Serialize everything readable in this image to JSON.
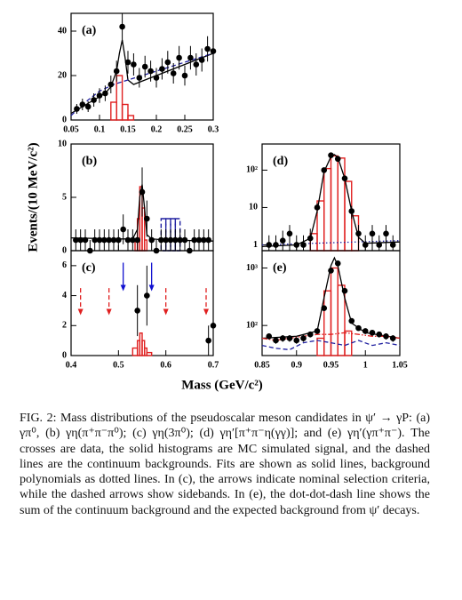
{
  "chart_data": [
    {
      "type": "scatter",
      "label": "(a)",
      "x": [
        0.06,
        0.07,
        0.08,
        0.09,
        0.1,
        0.11,
        0.12,
        0.13,
        0.14,
        0.15,
        0.16,
        0.17,
        0.18,
        0.19,
        0.2,
        0.21,
        0.22,
        0.23,
        0.24,
        0.25,
        0.26,
        0.27,
        0.28,
        0.29,
        0.3
      ],
      "values": [
        5,
        7,
        6,
        9,
        11,
        12,
        16,
        22,
        42,
        26,
        25,
        19,
        24,
        22,
        19,
        23,
        26,
        21,
        28,
        20,
        28,
        25,
        27,
        32,
        31
      ],
      "errors": [
        2.2,
        2.6,
        2.4,
        3,
        3.3,
        3.5,
        4,
        4.7,
        6.5,
        5.1,
        5,
        4.4,
        4.9,
        4.7,
        4.4,
        4.8,
        5.1,
        4.6,
        5.3,
        4.5,
        5.3,
        5,
        5.2,
        5.7,
        5.6
      ],
      "color": "#000000",
      "xlim": [
        0.05,
        0.3
      ],
      "ylim": [
        0,
        48
      ],
      "xticks": [
        0.05,
        0.1,
        0.15,
        0.2,
        0.25,
        0.3
      ],
      "yticks": [
        0,
        20,
        40
      ],
      "xtick_labels": true,
      "log": false,
      "histograms": [
        {
          "bins": [
            0.12,
            0.13,
            0.14,
            0.15,
            0.16
          ],
          "counts": [
            8,
            20,
            7,
            2
          ],
          "color": "#e02020",
          "dash": "solid"
        }
      ],
      "lines": [
        {
          "x": [
            0.05,
            0.07,
            0.09,
            0.11,
            0.12,
            0.13,
            0.135,
            0.14,
            0.145,
            0.15,
            0.16,
            0.18,
            0.2,
            0.22,
            0.24,
            0.26,
            0.28,
            0.3
          ],
          "values": [
            3,
            6,
            9,
            12,
            15,
            22,
            30,
            36,
            28,
            18,
            16,
            18,
            20,
            22,
            24,
            26,
            28,
            30
          ],
          "color": "#000000",
          "dash": "solid"
        },
        {
          "x": [
            0.05,
            0.075,
            0.1,
            0.125,
            0.15,
            0.175,
            0.2,
            0.225,
            0.25,
            0.275,
            0.3
          ],
          "values": [
            2,
            8,
            13,
            16,
            18,
            20,
            22,
            24,
            26,
            28,
            30
          ],
          "color": "#2020a0",
          "dash": "dashed"
        }
      ],
      "arrows": []
    },
    {
      "type": "scatter",
      "label": "(b)",
      "x": [
        0.41,
        0.42,
        0.43,
        0.44,
        0.45,
        0.46,
        0.47,
        0.48,
        0.49,
        0.5,
        0.51,
        0.52,
        0.53,
        0.54,
        0.55,
        0.56,
        0.57,
        0.58,
        0.59,
        0.6,
        0.61,
        0.62,
        0.63,
        0.64,
        0.65,
        0.66,
        0.67,
        0.68,
        0.69
      ],
      "values": [
        1,
        1,
        1,
        0,
        1,
        1,
        1,
        1,
        1,
        1,
        2,
        1,
        1,
        1,
        5.5,
        3,
        1,
        0,
        1,
        1,
        1,
        1,
        1,
        1,
        0,
        1,
        1,
        1,
        1
      ],
      "errors": [
        1,
        1,
        1,
        1,
        1,
        1,
        1,
        1,
        1,
        1,
        1.4,
        1,
        1,
        1,
        2.3,
        1.7,
        1,
        1,
        1,
        1,
        1,
        1,
        1,
        1,
        1,
        1,
        1,
        1,
        1
      ],
      "color": "#000000",
      "xlim": [
        0.4,
        0.7
      ],
      "ylim": [
        0,
        10
      ],
      "xticks": [
        0.4,
        0.5,
        0.6,
        0.7
      ],
      "yticks": [
        0,
        5,
        10
      ],
      "xtick_labels": false,
      "log": false,
      "histograms": [
        {
          "bins": [
            0.535,
            0.54,
            0.545,
            0.55,
            0.555,
            0.56
          ],
          "counts": [
            1,
            3,
            6,
            4,
            1
          ],
          "color": "#e02020",
          "dash": "solid"
        },
        {
          "bins": [
            0.59,
            0.6,
            0.61,
            0.62,
            0.63
          ],
          "counts": [
            3,
            3,
            3,
            3
          ],
          "color": "#2020a0",
          "dash": "dashed"
        }
      ],
      "lines": [
        {
          "x": [
            0.4,
            0.5,
            0.53,
            0.54,
            0.545,
            0.55,
            0.555,
            0.56,
            0.57,
            0.6,
            0.7
          ],
          "values": [
            1.2,
            1.1,
            1.1,
            2,
            5,
            6.2,
            4,
            1.5,
            1.1,
            1,
            0.9
          ],
          "color": "#000000",
          "dash": "solid"
        }
      ],
      "arrows": []
    },
    {
      "type": "scatter",
      "label": "(c)",
      "x": [
        0.54,
        0.56,
        0.69,
        0.7
      ],
      "values": [
        3,
        4,
        1,
        2
      ],
      "errors": [
        1.7,
        2,
        1,
        1.4
      ],
      "color": "#000000",
      "xlim": [
        0.4,
        0.7
      ],
      "ylim": [
        0,
        7
      ],
      "xticks": [
        0.4,
        0.5,
        0.6,
        0.7
      ],
      "yticks": [
        0,
        2,
        4,
        6
      ],
      "xtick_labels": true,
      "log": false,
      "histograms": [
        {
          "bins": [
            0.53,
            0.54,
            0.545,
            0.55,
            0.555,
            0.56,
            0.57
          ],
          "counts": [
            0.5,
            1,
            1.5,
            1,
            0.5,
            0.2
          ],
          "color": "#e02020",
          "dash": "solid"
        }
      ],
      "lines": [],
      "arrows": [
        {
          "x": 0.51,
          "from": 6.2,
          "to": 4.3,
          "color": "#1010d0",
          "dash": "solid"
        },
        {
          "x": 0.57,
          "from": 6.2,
          "to": 4.3,
          "color": "#1010d0",
          "dash": "solid"
        },
        {
          "x": 0.42,
          "from": 4.5,
          "to": 2.7,
          "color": "#e02020",
          "dash": "dashed"
        },
        {
          "x": 0.48,
          "from": 4.5,
          "to": 2.7,
          "color": "#e02020",
          "dash": "dashed"
        },
        {
          "x": 0.6,
          "from": 4.5,
          "to": 2.7,
          "color": "#e02020",
          "dash": "dashed"
        },
        {
          "x": 0.685,
          "from": 4.5,
          "to": 2.7,
          "color": "#e02020",
          "dash": "dashed"
        }
      ]
    },
    {
      "type": "scatter",
      "label": "(d)",
      "x": [
        0.86,
        0.87,
        0.88,
        0.89,
        0.9,
        0.91,
        0.92,
        0.93,
        0.94,
        0.95,
        0.96,
        0.97,
        0.98,
        0.99,
        1.0,
        1.01,
        1.02,
        1.03,
        1.04
      ],
      "values": [
        1,
        1,
        1.3,
        2,
        1,
        1,
        1.5,
        10,
        100,
        250,
        200,
        60,
        8,
        2,
        1,
        2,
        1,
        2,
        1
      ],
      "errors": [
        0.8,
        0.8,
        1.1,
        1.4,
        0.8,
        0.8,
        1.2,
        3,
        10,
        16,
        14,
        8,
        3,
        1.4,
        0.8,
        1.4,
        0.8,
        1.4,
        0.8
      ],
      "color": "#000000",
      "xlim": [
        0.85,
        1.05
      ],
      "ylim": [
        0.7,
        500
      ],
      "xticks": [
        0.85,
        0.9,
        0.95,
        1,
        1.05
      ],
      "yticks": [
        1,
        10,
        {
          "value": 100,
          "label": "10²"
        }
      ],
      "xtick_labels": false,
      "log": true,
      "histograms": [
        {
          "bins": [
            0.92,
            0.93,
            0.94,
            0.95,
            0.96,
            0.97,
            0.98,
            0.99
          ],
          "counts": [
            2,
            15,
            110,
            240,
            210,
            50,
            6
          ],
          "color": "#e02020",
          "dash": "solid"
        }
      ],
      "lines": [
        {
          "x": [
            0.85,
            0.9,
            0.92,
            0.93,
            0.94,
            0.95,
            0.955,
            0.96,
            0.97,
            0.98,
            0.99,
            1.0,
            1.05
          ],
          "values": [
            0.9,
            1,
            1.5,
            8,
            90,
            230,
            260,
            220,
            60,
            8,
            1.6,
            1.1,
            1.2
          ],
          "color": "#000000",
          "dash": "solid"
        },
        {
          "x": [
            0.85,
            1.05
          ],
          "values": [
            1,
            1.3
          ],
          "color": "#2020a0",
          "dash": "dotted"
        }
      ],
      "arrows": []
    },
    {
      "type": "scatter",
      "label": "(e)",
      "x": [
        0.86,
        0.87,
        0.88,
        0.89,
        0.9,
        0.91,
        0.92,
        0.93,
        0.94,
        0.95,
        0.96,
        0.97,
        0.98,
        0.99,
        1.0,
        1.01,
        1.02,
        1.03,
        1.04
      ],
      "values": [
        65,
        55,
        60,
        60,
        55,
        60,
        70,
        80,
        200,
        900,
        1200,
        400,
        120,
        90,
        80,
        75,
        70,
        65,
        60
      ],
      "errors": [
        8,
        7,
        8,
        8,
        7,
        8,
        8,
        9,
        14,
        30,
        35,
        20,
        11,
        9,
        9,
        9,
        8,
        8,
        8
      ],
      "color": "#000000",
      "xlim": [
        0.85,
        1.05
      ],
      "ylim": [
        30,
        2000
      ],
      "xticks": [
        0.85,
        0.9,
        0.95,
        1,
        1.05
      ],
      "yticks": [
        {
          "value": 100,
          "label": "10²"
        },
        {
          "value": 1000,
          "label": "10³"
        }
      ],
      "xtick_labels": true,
      "log": true,
      "histograms": [
        {
          "bins": [
            0.93,
            0.94,
            0.95,
            0.96,
            0.97,
            0.98
          ],
          "counts": [
            60,
            400,
            1000,
            500,
            80
          ],
          "color": "#e02020",
          "dash": "solid"
        }
      ],
      "lines": [
        {
          "x": [
            0.85,
            0.9,
            0.93,
            0.94,
            0.95,
            0.955,
            0.96,
            0.97,
            0.98,
            1.0,
            1.05
          ],
          "values": [
            60,
            65,
            80,
            300,
            1100,
            1500,
            1100,
            300,
            110,
            75,
            60
          ],
          "color": "#000000",
          "dash": "solid"
        },
        {
          "x": [
            0.85,
            0.87,
            0.89,
            0.91,
            0.93,
            0.95,
            0.97,
            0.99,
            1.01,
            1.03,
            1.05
          ],
          "values": [
            45,
            40,
            38,
            50,
            55,
            50,
            45,
            55,
            45,
            50,
            45
          ],
          "color": "#2020a0",
          "dash": "dashed"
        },
        {
          "x": [
            0.85,
            0.87,
            0.89,
            0.91,
            0.93,
            0.95,
            0.97,
            0.99,
            1.01,
            1.03,
            1.05
          ],
          "values": [
            60,
            55,
            60,
            65,
            70,
            70,
            75,
            70,
            65,
            65,
            60
          ],
          "color": "#e02020",
          "dash": "dotdash"
        }
      ],
      "arrows": []
    }
  ],
  "ylabel": "Events/(10 MeV/c²)",
  "xlabel": "Mass (GeV/c²)",
  "caption": "FIG. 2: Mass distributions of the pseudoscalar meson candidates in ψ′ → γP: (a) γπ⁰, (b) γη(π⁺π⁻π⁰); (c) γη(3π⁰); (d) γη′[π⁺π⁻η(γγ)]; and (e) γη′(γπ⁺π⁻). The crosses are data, the solid histograms are MC simulated signal, and the dashed lines are the continuum backgrounds. Fits are shown as solid lines, background polynomials as dotted lines. In (c), the arrows indicate nominal selection criteria, while the dashed arrows show sidebands. In (e), the dot-dot-dash line shows the sum of the continuum background and the expected background from ψ′ decays."
}
